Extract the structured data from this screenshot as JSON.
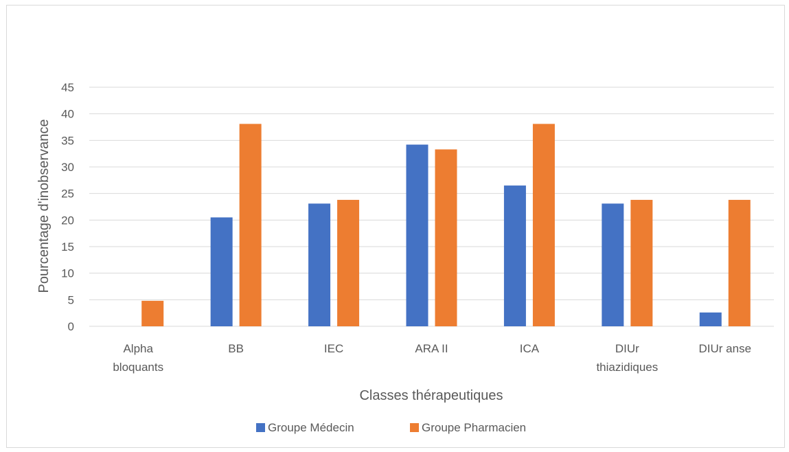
{
  "chart_data": {
    "type": "bar",
    "title": "",
    "xlabel": "Classes thérapeutiques",
    "ylabel": "Pourcentage d'inobservance",
    "ylim": [
      0,
      45
    ],
    "ytick_step": 5,
    "grid": true,
    "legend_position": "bottom",
    "categories": [
      [
        "Alpha",
        "bloquants"
      ],
      [
        "BB"
      ],
      [
        "IEC"
      ],
      [
        "ARA II"
      ],
      [
        "ICA"
      ],
      [
        "DIUr",
        "thiazidiques"
      ],
      [
        "DIUr anse"
      ]
    ],
    "series": [
      {
        "name": "Groupe Médecin",
        "color": "#4472c4",
        "values": [
          0,
          20.5,
          23.1,
          34.2,
          26.5,
          23.1,
          2.6
        ]
      },
      {
        "name": "Groupe Pharmacien",
        "color": "#ed7d31",
        "values": [
          4.8,
          38.1,
          23.8,
          33.3,
          38.1,
          23.8,
          23.8
        ]
      }
    ]
  }
}
